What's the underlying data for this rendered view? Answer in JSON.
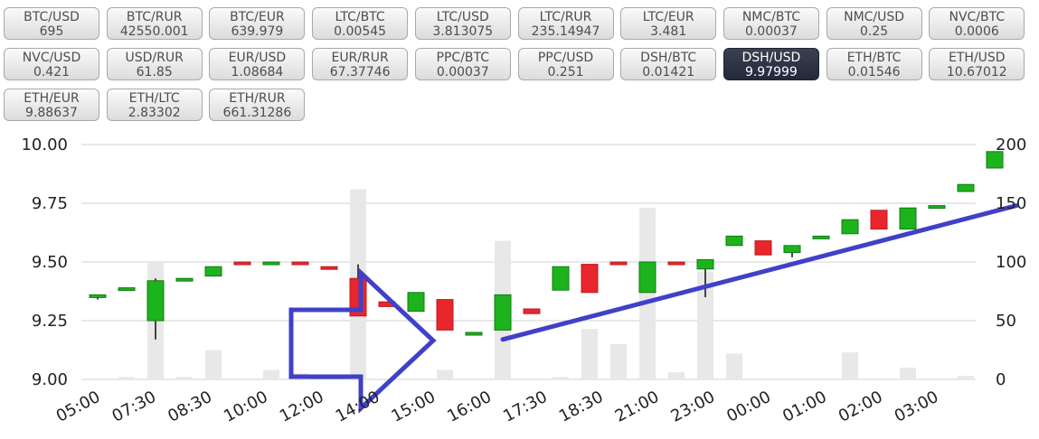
{
  "pairs": [
    {
      "name": "BTC/USD",
      "price": "695"
    },
    {
      "name": "BTC/RUR",
      "price": "42550.001"
    },
    {
      "name": "BTC/EUR",
      "price": "639.979"
    },
    {
      "name": "LTC/BTC",
      "price": "0.00545"
    },
    {
      "name": "LTC/USD",
      "price": "3.813075"
    },
    {
      "name": "LTC/RUR",
      "price": "235.14947"
    },
    {
      "name": "LTC/EUR",
      "price": "3.481"
    },
    {
      "name": "NMC/BTC",
      "price": "0.00037"
    },
    {
      "name": "NMC/USD",
      "price": "0.25"
    },
    {
      "name": "NVC/BTC",
      "price": "0.0006"
    },
    {
      "name": "NVC/USD",
      "price": "0.421"
    },
    {
      "name": "USD/RUR",
      "price": "61.85"
    },
    {
      "name": "EUR/USD",
      "price": "1.08684"
    },
    {
      "name": "EUR/RUR",
      "price": "67.37746"
    },
    {
      "name": "PPC/BTC",
      "price": "0.00037"
    },
    {
      "name": "PPC/USD",
      "price": "0.251"
    },
    {
      "name": "DSH/BTC",
      "price": "0.01421"
    },
    {
      "name": "DSH/USD",
      "price": "9.97999",
      "active": true
    },
    {
      "name": "ETH/BTC",
      "price": "0.01546"
    },
    {
      "name": "ETH/USD",
      "price": "10.67012"
    },
    {
      "name": "ETH/EUR",
      "price": "9.88637"
    },
    {
      "name": "ETH/LTC",
      "price": "2.83302"
    },
    {
      "name": "ETH/RUR",
      "price": "661.31286"
    }
  ],
  "chart_data": {
    "type": "candlestick",
    "y_left": {
      "ticks": [
        "10.00",
        "9.75",
        "9.50",
        "9.25",
        "9.00"
      ],
      "range": [
        9.0,
        10.0
      ]
    },
    "y_right": {
      "ticks": [
        "200",
        "150",
        "100",
        "50",
        "0"
      ],
      "range": [
        0,
        200
      ]
    },
    "x_tick_labels": [
      "05:00",
      "07:30",
      "08:30",
      "10:00",
      "12:00",
      "14:00",
      "15:00",
      "16:00",
      "17:30",
      "18:30",
      "21:00",
      "23:00",
      "00:00",
      "01:00",
      "02:00",
      "03:00"
    ],
    "grid": true,
    "colors": {
      "up": "#1db31d",
      "down": "#e8262b",
      "volume": "#e8e8e8",
      "trendline": "#4040c8",
      "grid": "#d0d0d0"
    },
    "candles": [
      {
        "open": 9.35,
        "close": 9.36,
        "high": 9.36,
        "low": 9.34,
        "volume": 0
      },
      {
        "open": 9.38,
        "close": 9.39,
        "high": 9.39,
        "low": 9.38,
        "volume": 2
      },
      {
        "open": 9.25,
        "close": 9.42,
        "high": 9.43,
        "low": 9.17,
        "volume": 100
      },
      {
        "open": 9.42,
        "close": 9.43,
        "high": 9.43,
        "low": 9.42,
        "volume": 2
      },
      {
        "open": 9.44,
        "close": 9.48,
        "high": 9.48,
        "low": 9.44,
        "volume": 25
      },
      {
        "open": 9.5,
        "close": 9.49,
        "high": 9.5,
        "low": 9.49,
        "volume": 0
      },
      {
        "open": 9.49,
        "close": 9.5,
        "high": 9.5,
        "low": 9.49,
        "volume": 8
      },
      {
        "open": 9.5,
        "close": 9.49,
        "high": 9.5,
        "low": 9.49,
        "volume": 5
      },
      {
        "open": 9.48,
        "close": 9.47,
        "high": 9.48,
        "low": 9.47,
        "volume": 0
      },
      {
        "open": 9.43,
        "close": 9.27,
        "high": 9.49,
        "low": 9.27,
        "volume": 162
      },
      {
        "open": 9.33,
        "close": 9.31,
        "high": 9.33,
        "low": 9.31,
        "volume": 0
      },
      {
        "open": 9.29,
        "close": 9.37,
        "high": 9.37,
        "low": 9.29,
        "volume": 0
      },
      {
        "open": 9.34,
        "close": 9.21,
        "high": 9.34,
        "low": 9.21,
        "volume": 8
      },
      {
        "open": 9.19,
        "close": 9.2,
        "high": 9.2,
        "low": 9.19,
        "volume": 0
      },
      {
        "open": 9.21,
        "close": 9.36,
        "high": 9.36,
        "low": 9.21,
        "volume": 118
      },
      {
        "open": 9.3,
        "close": 9.28,
        "high": 9.3,
        "low": 9.28,
        "volume": 0
      },
      {
        "open": 9.38,
        "close": 9.48,
        "high": 9.48,
        "low": 9.38,
        "volume": 2
      },
      {
        "open": 9.49,
        "close": 9.37,
        "high": 9.49,
        "low": 9.37,
        "volume": 43
      },
      {
        "open": 9.5,
        "close": 9.49,
        "high": 9.5,
        "low": 9.49,
        "volume": 30
      },
      {
        "open": 9.37,
        "close": 9.5,
        "high": 9.5,
        "low": 9.37,
        "volume": 146
      },
      {
        "open": 9.5,
        "close": 9.49,
        "high": 9.5,
        "low": 9.49,
        "volume": 6
      },
      {
        "open": 9.47,
        "close": 9.51,
        "high": 9.51,
        "low": 9.35,
        "volume": 92
      },
      {
        "open": 9.57,
        "close": 9.61,
        "high": 9.61,
        "low": 9.57,
        "volume": 22
      },
      {
        "open": 9.59,
        "close": 9.53,
        "high": 9.59,
        "low": 9.53,
        "volume": 0
      },
      {
        "open": 9.54,
        "close": 9.57,
        "high": 9.57,
        "low": 9.52,
        "volume": 0
      },
      {
        "open": 9.6,
        "close": 9.61,
        "high": 9.61,
        "low": 9.6,
        "volume": 0
      },
      {
        "open": 9.62,
        "close": 9.68,
        "high": 9.68,
        "low": 9.62,
        "volume": 23
      },
      {
        "open": 9.72,
        "close": 9.64,
        "high": 9.72,
        "low": 9.64,
        "volume": 0
      },
      {
        "open": 9.64,
        "close": 9.73,
        "high": 9.73,
        "low": 9.64,
        "volume": 10
      },
      {
        "open": 9.73,
        "close": 9.74,
        "high": 9.74,
        "low": 9.73,
        "volume": 0
      },
      {
        "open": 9.8,
        "close": 9.83,
        "high": 9.83,
        "low": 9.8,
        "volume": 3
      },
      {
        "open": 9.9,
        "close": 9.97,
        "high": 9.97,
        "low": 9.9,
        "volume": 0
      }
    ],
    "annotations": {
      "trendline": {
        "from": {
          "candle": 14,
          "price": 9.17
        },
        "to": {
          "candle": 32,
          "price": 9.74
        }
      }
    }
  }
}
